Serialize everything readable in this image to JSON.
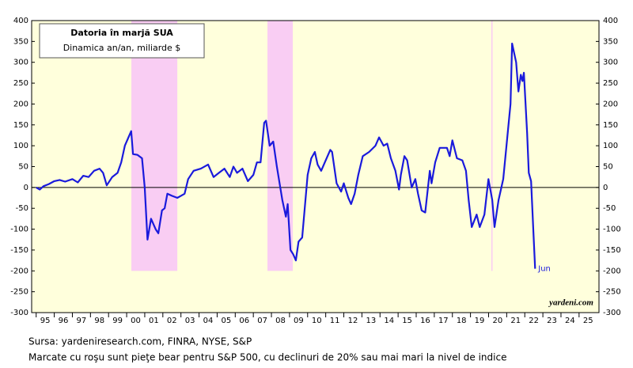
{
  "chart_data": {
    "type": "line",
    "title": "Datoria în marjă SUA",
    "subtitle": "Dinamica an/an, miliarde $",
    "annotation": "Jun",
    "watermark": "yardeni.com",
    "notes": [
      "Sursa: yardeniresearch.com, FINRA, NYSE, S&P",
      "Marcate cu roşu sunt pieţe bear pentru S&P 500, cu declinuri de 20% sau mai mari la nivel de indice"
    ],
    "xlim": [
      1994.75,
      2026.1
    ],
    "ylim": [
      -300,
      400
    ],
    "yticks": [
      -300,
      -250,
      -200,
      -150,
      -100,
      -50,
      0,
      50,
      100,
      150,
      200,
      250,
      300,
      350,
      400
    ],
    "y2lim": [
      -300,
      400
    ],
    "y2ticks": [
      -300,
      -250,
      -200,
      -150,
      -100,
      -50,
      0,
      50,
      100,
      150,
      200,
      250,
      300,
      350,
      400
    ],
    "xticks": [
      {
        "value": 1995.5,
        "label": "95"
      },
      {
        "value": 1996.5,
        "label": "96"
      },
      {
        "value": 1997.5,
        "label": "97"
      },
      {
        "value": 1998.5,
        "label": "98"
      },
      {
        "value": 1999.5,
        "label": "99"
      },
      {
        "value": 2000.5,
        "label": "00"
      },
      {
        "value": 2001.5,
        "label": "01"
      },
      {
        "value": 2002.5,
        "label": "02"
      },
      {
        "value": 2003.5,
        "label": "03"
      },
      {
        "value": 2004.5,
        "label": "04"
      },
      {
        "value": 2005.5,
        "label": "05"
      },
      {
        "value": 2006.5,
        "label": "06"
      },
      {
        "value": 2007.5,
        "label": "07"
      },
      {
        "value": 2008.5,
        "label": "08"
      },
      {
        "value": 2009.5,
        "label": "09"
      },
      {
        "value": 2010.5,
        "label": "10"
      },
      {
        "value": 2011.5,
        "label": "11"
      },
      {
        "value": 2012.5,
        "label": "12"
      },
      {
        "value": 2013.5,
        "label": "13"
      },
      {
        "value": 2014.5,
        "label": "14"
      },
      {
        "value": 2015.5,
        "label": "15"
      },
      {
        "value": 2016.5,
        "label": "16"
      },
      {
        "value": 2017.5,
        "label": "17"
      },
      {
        "value": 2018.5,
        "label": "18"
      },
      {
        "value": 2019.5,
        "label": "19"
      },
      {
        "value": 2020.5,
        "label": "20"
      },
      {
        "value": 2021.5,
        "label": "21"
      },
      {
        "value": 2022.5,
        "label": "22"
      },
      {
        "value": 2023.5,
        "label": "23"
      },
      {
        "value": 2024.5,
        "label": "24"
      },
      {
        "value": 2025.5,
        "label": "25"
      }
    ],
    "bear_markets": [
      [
        2000.26,
        2002.8
      ],
      [
        2007.78,
        2009.18
      ],
      [
        2020.15,
        2020.22
      ]
    ],
    "bear_market_range": [
      -200,
      400
    ],
    "bear_color": "#f9cdf3",
    "plot_background": "#ffffdc",
    "series": [
      {
        "name": "Datoria în marjă",
        "color": "#1a1adc",
        "x": [
          1995.0,
          1995.2,
          1995.4,
          1995.7,
          1996.0,
          1996.3,
          1996.6,
          1997.0,
          1997.3,
          1997.6,
          1997.9,
          1998.2,
          1998.5,
          1998.7,
          1998.9,
          1999.2,
          1999.5,
          1999.7,
          1999.9,
          2000.15,
          2000.25,
          2000.35,
          2000.6,
          2000.85,
          2001.0,
          2001.15,
          2001.35,
          2001.6,
          2001.75,
          2001.95,
          2002.1,
          2002.25,
          2002.5,
          2002.8,
          2003.0,
          2003.2,
          2003.4,
          2003.7,
          2004.1,
          2004.5,
          2004.8,
          2005.1,
          2005.4,
          2005.7,
          2005.9,
          2006.1,
          2006.4,
          2006.7,
          2007.0,
          2007.2,
          2007.4,
          2007.6,
          2007.7,
          2007.9,
          2008.1,
          2008.3,
          2008.6,
          2008.8,
          2008.9,
          2009.05,
          2009.2,
          2009.35,
          2009.5,
          2009.7,
          2009.8,
          2010.0,
          2010.2,
          2010.4,
          2010.55,
          2010.75,
          2010.95,
          2011.25,
          2011.35,
          2011.6,
          2011.85,
          2012.0,
          2012.25,
          2012.4,
          2012.6,
          2012.8,
          2013.05,
          2013.4,
          2013.75,
          2013.95,
          2014.2,
          2014.4,
          2014.6,
          2014.85,
          2015.05,
          2015.15,
          2015.35,
          2015.5,
          2015.75,
          2015.95,
          2016.1,
          2016.3,
          2016.5,
          2016.75,
          2016.85,
          2017.05,
          2017.3,
          2017.7,
          2017.85,
          2018.0,
          2018.25,
          2018.55,
          2018.75,
          2018.9,
          2019.07,
          2019.34,
          2019.51,
          2019.77,
          2019.99,
          2020.2,
          2020.33,
          2020.55,
          2020.81,
          2020.99,
          2021.21,
          2021.3,
          2021.52,
          2021.65,
          2021.78,
          2021.87,
          2021.95,
          2022.13,
          2022.22,
          2022.35,
          2022.48,
          2022.57
        ],
        "values": [
          0,
          -5,
          3,
          8,
          15,
          18,
          14,
          20,
          12,
          28,
          25,
          40,
          45,
          35,
          5,
          25,
          35,
          60,
          100,
          125,
          135,
          80,
          78,
          70,
          0,
          -125,
          -75,
          -100,
          -110,
          -55,
          -50,
          -15,
          -20,
          -25,
          -20,
          -15,
          20,
          40,
          45,
          55,
          25,
          35,
          45,
          25,
          50,
          35,
          45,
          15,
          30,
          60,
          60,
          155,
          160,
          100,
          110,
          50,
          -30,
          -70,
          -40,
          -150,
          -160,
          -175,
          -130,
          -120,
          -70,
          30,
          70,
          85,
          55,
          40,
          60,
          90,
          85,
          10,
          -10,
          10,
          -25,
          -40,
          -15,
          30,
          75,
          85,
          100,
          120,
          100,
          105,
          70,
          40,
          -5,
          30,
          75,
          65,
          0,
          20,
          -15,
          -55,
          -60,
          40,
          10,
          60,
          95,
          95,
          75,
          113,
          70,
          65,
          40,
          -30,
          -95,
          -65,
          -95,
          -65,
          20,
          -30,
          -95,
          -30,
          20,
          100,
          200,
          345,
          300,
          230,
          270,
          255,
          275,
          130,
          35,
          15,
          -110,
          -195
        ]
      }
    ]
  }
}
